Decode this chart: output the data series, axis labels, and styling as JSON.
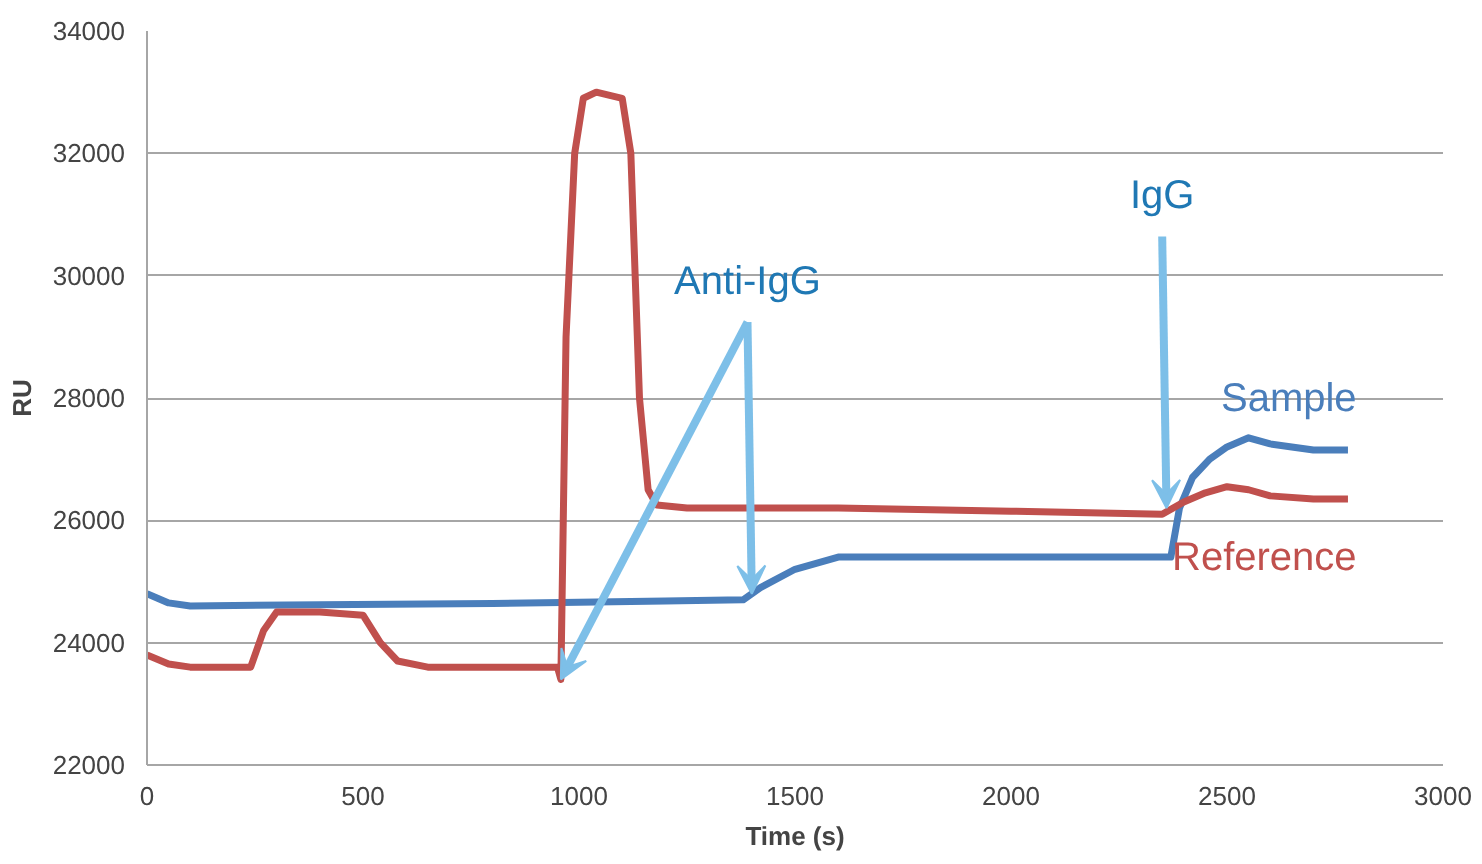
{
  "chart_data": {
    "type": "line",
    "xlabel": "Time (s)",
    "ylabel": "RU",
    "xlim": [
      0,
      3000
    ],
    "xticks": [
      0,
      500,
      1000,
      1500,
      2000,
      2500,
      3000
    ],
    "ylim": [
      22000,
      34000
    ],
    "yticks": [
      22000,
      24000,
      26000,
      28000,
      30000,
      32000,
      34000
    ],
    "grid": "y",
    "marker": "none",
    "line_style": "solid",
    "series": [
      {
        "name": "Sample",
        "color": "#4a7ebb",
        "x": [
          0,
          50,
          100,
          400,
          800,
          1000,
          1200,
          1380,
          1420,
          1500,
          1600,
          1800,
          2000,
          2200,
          2370,
          2390,
          2420,
          2460,
          2500,
          2550,
          2600,
          2650,
          2700,
          2780
        ],
        "values": [
          24800,
          24650,
          24600,
          24620,
          24640,
          24660,
          24680,
          24700,
          24900,
          25200,
          25400,
          25400,
          25400,
          25400,
          25400,
          26200,
          26700,
          27000,
          27200,
          27350,
          27250,
          27200,
          27150,
          27150
        ]
      },
      {
        "name": "Reference",
        "color": "#c0504d",
        "x": [
          0,
          50,
          100,
          240,
          270,
          300,
          400,
          500,
          540,
          580,
          650,
          800,
          950,
          958,
          970,
          990,
          1010,
          1040,
          1100,
          1120,
          1140,
          1160,
          1180,
          1250,
          1600,
          2000,
          2350,
          2400,
          2450,
          2500,
          2550,
          2600,
          2700,
          2780
        ],
        "values": [
          23800,
          23650,
          23600,
          23600,
          24200,
          24500,
          24500,
          24450,
          24000,
          23700,
          23600,
          23600,
          23600,
          23400,
          29000,
          32000,
          32900,
          33000,
          32900,
          32000,
          28000,
          26500,
          26250,
          26200,
          26200,
          26150,
          26100,
          26300,
          26450,
          26550,
          26500,
          26400,
          26350,
          26350
        ]
      }
    ],
    "annotations": [
      {
        "text": "Anti-IgG",
        "x": 1400,
        "y": 24800
      },
      {
        "text": "IgG",
        "x": 2360,
        "y": 26200
      }
    ]
  }
}
